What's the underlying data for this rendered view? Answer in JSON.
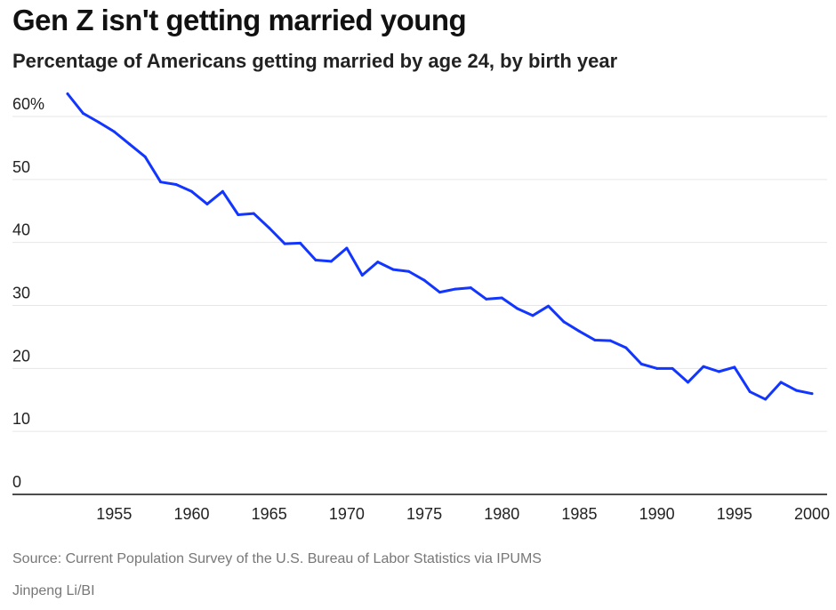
{
  "header": {
    "title": "Gen Z isn't getting married young",
    "subtitle": "Percentage of Americans getting married by age 24, by birth year"
  },
  "footer": {
    "source": "Source: Current Population Survey of the U.S. Bureau of Labor Statistics via IPUMS",
    "credit": "Jinpeng Li/BI"
  },
  "chart_data": {
    "type": "line",
    "title": "Gen Z isn't getting married young",
    "subtitle": "Percentage of Americans getting married by age 24, by birth year",
    "xlabel": "",
    "ylabel": "",
    "xlim": [
      1950,
      2001
    ],
    "ylim": [
      0,
      65
    ],
    "grid": true,
    "legend": "none",
    "line_color": "#1236ff",
    "x_ticks": [
      1955,
      1960,
      1965,
      1970,
      1975,
      1980,
      1985,
      1990,
      1995,
      2000
    ],
    "y_ticks": [
      {
        "value": 0,
        "label": "0"
      },
      {
        "value": 10,
        "label": "10"
      },
      {
        "value": 20,
        "label": "20"
      },
      {
        "value": 30,
        "label": "30"
      },
      {
        "value": 40,
        "label": "40"
      },
      {
        "value": 50,
        "label": "50"
      },
      {
        "value": 60,
        "label": "60%"
      }
    ],
    "series": [
      {
        "x": [
          1952,
          1953,
          1954,
          1955,
          1956,
          1957,
          1958,
          1959,
          1960,
          1961,
          1962,
          1963,
          1964,
          1965,
          1966,
          1967,
          1968,
          1969,
          1970,
          1971,
          1972,
          1973,
          1974,
          1975,
          1976,
          1977,
          1978,
          1979,
          1980,
          1981,
          1982,
          1983,
          1984,
          1985,
          1986,
          1987,
          1988,
          1989,
          1990,
          1991,
          1992,
          1993,
          1994,
          1995,
          1996,
          1997,
          1998,
          1999,
          2000
        ],
        "y": [
          63.6,
          60.5,
          59.1,
          57.6,
          55.6,
          53.6,
          49.6,
          49.2,
          48.1,
          46.1,
          48.1,
          44.4,
          44.6,
          42.3,
          39.8,
          39.9,
          37.2,
          37.0,
          39.1,
          34.8,
          36.9,
          35.7,
          35.4,
          34.0,
          32.1,
          32.6,
          32.8,
          31.0,
          31.2,
          29.5,
          28.4,
          29.9,
          27.4,
          25.9,
          24.5,
          24.4,
          23.3,
          20.7,
          20.0,
          20.0,
          17.8,
          20.3,
          19.5,
          20.2,
          16.3,
          15.1,
          17.8,
          16.5,
          16.0
        ]
      }
    ]
  }
}
